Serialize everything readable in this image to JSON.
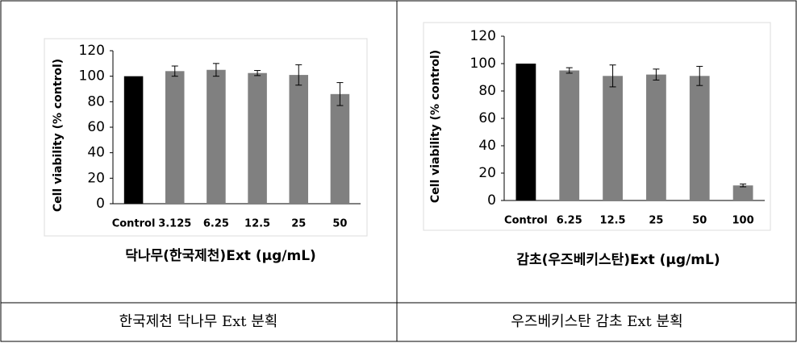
{
  "chart_data": [
    {
      "type": "bar",
      "x_label": "닥나무(한국제천)Ext (μg/mL)",
      "y_label": "Cell viability (% control)",
      "categories": [
        "Control",
        "3.125",
        "6.25",
        "12.5",
        "25",
        "50"
      ],
      "values": [
        100,
        104,
        105,
        102.5,
        101,
        86
      ],
      "errors": [
        null,
        4,
        5,
        2,
        8,
        9
      ],
      "colors": [
        "#000000",
        "#808080",
        "#808080",
        "#808080",
        "#808080",
        "#808080"
      ],
      "ylim": [
        0,
        120
      ],
      "yticks": [
        0,
        20,
        40,
        60,
        80,
        100,
        120
      ]
    },
    {
      "type": "bar",
      "x_label": "감초(우즈베키스탄)Ext (μg/mL)",
      "y_label": "Cell viability (% control)",
      "categories": [
        "Control",
        "6.25",
        "12.5",
        "25",
        "50",
        "100"
      ],
      "values": [
        100,
        95,
        91,
        92,
        91,
        11
      ],
      "errors": [
        null,
        2,
        8,
        4,
        7,
        1
      ],
      "colors": [
        "#000000",
        "#808080",
        "#808080",
        "#808080",
        "#808080",
        "#808080"
      ],
      "ylim": [
        0,
        120
      ],
      "yticks": [
        0,
        20,
        40,
        60,
        80,
        100,
        120
      ]
    }
  ],
  "captions": [
    "한국제천 닥나무 Ext 분획",
    "우즈베키스탄 감초 Ext 분획"
  ]
}
